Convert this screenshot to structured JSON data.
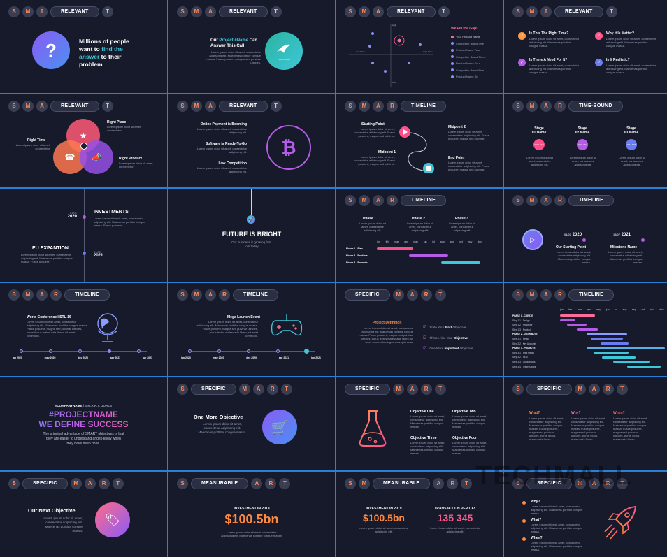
{
  "letters": {
    "s": "S",
    "m": "M",
    "a": "A",
    "r": "R",
    "t": "T"
  },
  "labels": {
    "relevant": "RELEVANT",
    "timeline": "TIMELINE",
    "time_bound": "TIME-BOUND",
    "specific": "SPECIFIC",
    "measurable": "MEASURABLE"
  },
  "s1": {
    "line1": "Millions of people",
    "line2": "want to ",
    "hl": "find the",
    "line3": "answer",
    " to": " to their",
    "line4": "problem",
    "q": "?"
  },
  "s2": {
    "t1": "Our ",
    "t2": "Project #Name",
    "t3": " Can",
    "t4": "Answer This Call",
    "body": "Lorem ipsum dolor sit amet, consectetur adipiscing elit. Maecenas porttitor congue massa. Fusce posuere, magna sed pulvinar ultricies.",
    "logo": "YOUR LOGO"
  },
  "s3": {
    "title": "We Fill the Gap!",
    "items": [
      "Your Product Name",
      "Competitor Brand One",
      "Product Name Two",
      "Competitor Brand Three",
      "Product Name Four",
      "Competitor Brand Five",
      "Product Name Six"
    ],
    "high": "High",
    "low": "Low",
    "lowp": "Low Price",
    "highp": "High Price"
  },
  "s4": {
    "q1": "Is This The Right Time?",
    "q2": "Why It Is Matter?",
    "q3": "Is There A Need For It?",
    "q4": "Is It Realistic?",
    "body": "Lorem ipsum dolor sit amet, consectetur adipiscing elit. Maecenas porttitor congue massa."
  },
  "s5": {
    "rp": "Right Place",
    "rt": "Right Time",
    "rpr": "Right Product",
    "body": "Lorem ipsum dolor sit amet, consectetur."
  },
  "s6": {
    "a": "Online Payment is Booming",
    "b": "Software is Ready-To-Go",
    "c": "Low Competition",
    "body": "Lorem ipsum dolor sit amet, consectetur adipiscing elit."
  },
  "s7": {
    "sp": "Starting Point",
    "m1": "Midpoint 1",
    "m2": "Midpoint 2",
    "ep": "End Point",
    "body": "Lorem ipsum dolor sit amet, consectetur adipiscing elit. Fusce posuere, magna sed pulvinar."
  },
  "s8": {
    "stage": "Stage",
    "names": [
      "01 Name",
      "02 Name",
      "03 Name"
    ],
    "dots": [
      "2020 SEP",
      "2021 JAN",
      "2021 FEB"
    ],
    "body": "Lorem ipsum dolor sit amet, consectetur adipiscing elit."
  },
  "s9": {
    "d1": "01/01",
    "y1": "2020",
    "inv": "INVESTMENTS",
    "d2": "01/02",
    "y2": "2021",
    "eu": "EU EXPANTION",
    "body": "Lorem ipsum dolor sit amet, consectetur adipiscing elit. Maecenas porttitor congue massa. Fusce posuere."
  },
  "s10": {
    "title": "FUTURE IS BRIGHT",
    "sub1": "Our business is growing fast.",
    "sub2": "Join today!"
  },
  "s11": {
    "phases": [
      "Phase 1",
      "Phase 2",
      "Phase 3"
    ],
    "months": [
      "jan",
      "feb",
      "mar",
      "apr",
      "may",
      "jun",
      "jul",
      "aug",
      "sep",
      "oct",
      "nov",
      "dec"
    ],
    "rows": [
      "Phase 1 - Plan",
      "Phase 2 - Prodiera",
      "Phase 3 - Promote"
    ],
    "body": "Lorem ipsum dolor sit amet, consectetur adipiscing elit."
  },
  "s12": {
    "d1": "01/01",
    "y1": "2020",
    "d2": "15/07",
    "y2": "2021",
    "sp": "Our Starting Point",
    "mn": "Milestone Name",
    "body": "Lorem ipsum dolor sit amet, consectetur adipiscing elit. Maecenas porttitor congue massa."
  },
  "s13": {
    "title": "World Conference IISTL-16",
    "body": "Lorem ipsum dolor sit amet, consectetur adipiscing elit. Maecenas porttitor congue massa. Fusce posuere, magna sed pulvinar ultricies, purus lectus malesuada libero, sit amet commodo.",
    "dates": [
      "jan 2020",
      "may 2020",
      "dec 2020",
      "apr 2021",
      "jun 2021"
    ]
  },
  "s14": {
    "title": "Mega Launch Event",
    "body": "Lorem ipsum dolor sit amet, consectetur adipiscing elit. Maecenas porttitor congue massa. Fusce posuere, magna sed pulvinar ultricies, purus lectus malesuada libero, sit amet commodo.",
    "dates": [
      "jan 2020",
      "may 2020",
      "dec 2020",
      "apr 2021",
      "jun 2021"
    ]
  },
  "s15": {
    "pd": "Project Definition",
    "body": "Lorem ipsum dolor sit amet, consectetur adipiscing elit. Maecenas porttitor congue massa. Fusce posuere, magna sed pulvinar ultricies, purus lectus malesuada libero, sit amet commodo magna eros quis urna.",
    "c1a": "State Your ",
    "c1b": "First",
    "c1c": " Objective",
    "c2a": "This Is Also Your ",
    "c2b": "Objective",
    "c3a": "One More ",
    "c3b": "Important",
    "c3c": " Objective"
  },
  "s16": {
    "rows": [
      "PHASE 1 - CREATE",
      "Step 1.1 - Design",
      "Step 1.2 - Prototype",
      "Step 1.3 - Product",
      "PHASE 2 - DISTRIBUTE",
      "Step 2.1 - Retail",
      "Step 2.2 - Key Accounts",
      "PHASE 3 - PROMOTE",
      "Step 3.1 - Print Media",
      "Step 3.2 - SEM",
      "Step 3.3 - Outdoor Ads",
      "Step 3.4 - Trade Shows"
    ],
    "months": [
      "jan",
      "feb",
      "mar",
      "apr",
      "may",
      "jun",
      "jul",
      "aug",
      "sep",
      "oct",
      "nov",
      "dec"
    ]
  },
  "s17": {
    "cn": "#COMPANYNAME",
    "sg": " | S.M.A.R.T. GOALS",
    "pn": "#PROJECTNAME",
    "wd": "WE DEFINE SUCCESS",
    "body1": "The principal advantage of SMART objectives is that",
    "body2": "they are easier to understand and to know when",
    "body3": "they have been done."
  },
  "s18": {
    "title": "One More Objective",
    "body": "Lorem ipsum dolor sit amet, consectetur adipiscing elit. Maecenas porttitor congue massa."
  },
  "s19": {
    "o1": "Objective One",
    "o2": "Objective Two",
    "o3": "Objective Three",
    "o4": "Objective Four",
    "body": "Lorem ipsum dolor sit amet, consectetur adipiscing elit. Maecenas porttitor congue massa."
  },
  "s20": {
    "w1": "What?",
    "w2": "Why?",
    "w3": "When?",
    "body": "Lorem ipsum dolor sit amet, consectetur adipiscing elit. Maecenas porttitor congue massa. Fusce posuere, magna sed pulvinar ultricies, purus lectus malesuada libero."
  },
  "s21": {
    "title": "Our Next Objective",
    "body1": "Lorem ipsum dolor sit amet,",
    "body2": "consectetur adipiscing elit.",
    "body3": "Maecenas porttitor congue",
    "body4": "massa."
  },
  "s22": {
    "title": "INVESTMENT IN 2019",
    "value": "$100.5bn",
    "body": "Lorem ipsum dolor sit amet, consectetur adipiscing elit. Maecenas porttitor congue massa."
  },
  "s23": {
    "t1": "INVESTMENT IN 2019",
    "v1": "$100.5bn",
    "t2": "TRANSACTION PER DAY",
    "v2": "135 345",
    "body": "Lorem ipsum dolor sit amet, consectetur adipiscing elit."
  },
  "s24": {
    "w1": "Why?",
    "w2": "What?",
    "w3": "When?",
    "body": "Lorem ipsum dolor sit amet, consectetur adipiscing elit. Maecenas porttitor congue massa."
  },
  "watermark": "TECHMALL",
  "colors": {
    "bg": "#171a2b",
    "border": "#2a7fd6",
    "orange": "#ff8a3d",
    "pink": "#ff6b9b",
    "purple": "#8a5cf6",
    "blue": "#4a90f0"
  }
}
